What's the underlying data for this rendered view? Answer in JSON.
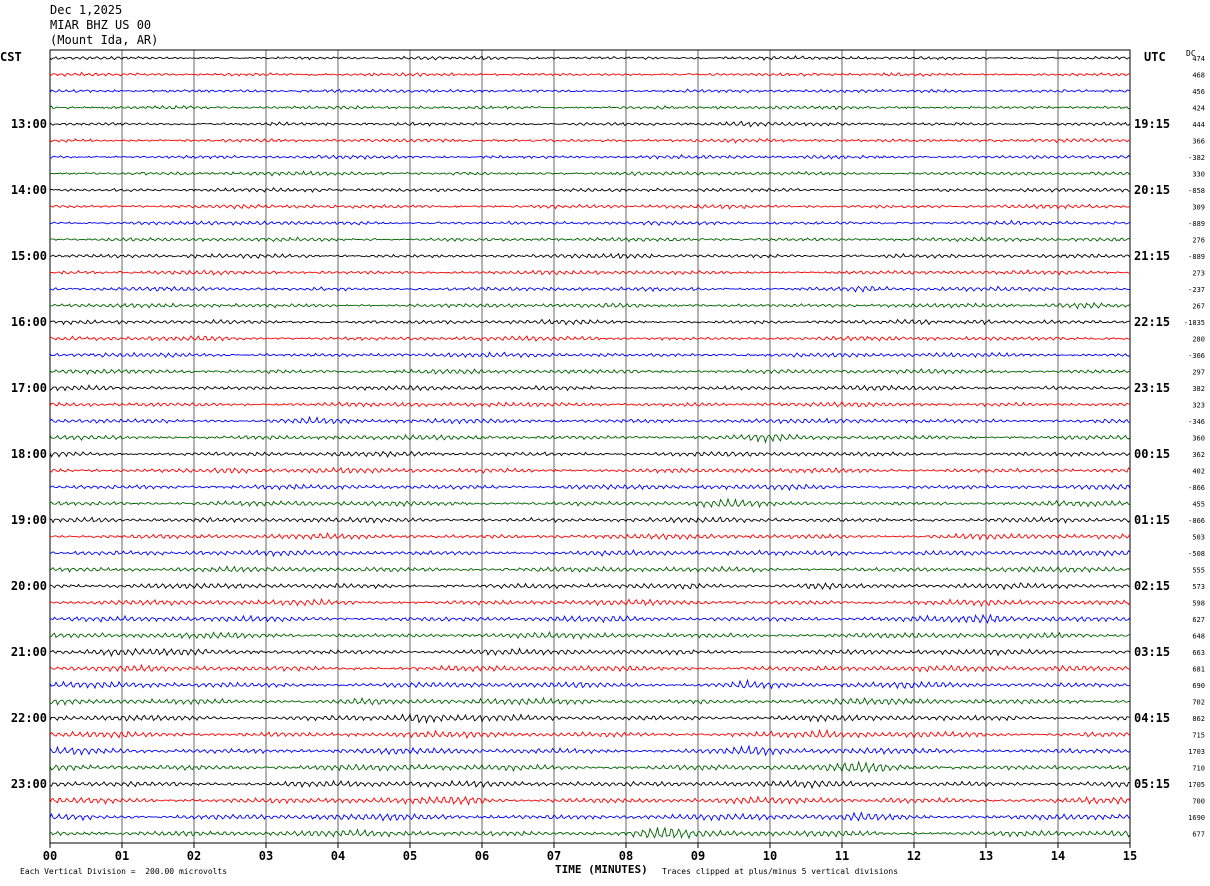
{
  "header": {
    "date": "Dec 1,2025",
    "station": "MIAR BHZ US 00",
    "location": "(Mount Ida, AR)"
  },
  "left_axis_label": "CST",
  "right_axis_label": "UTC",
  "dc_label": "DC",
  "footer": {
    "scale_note": "Each Vertical Division =  200.00 microvolts",
    "clip_note": "Traces clipped at plus/minus 5 vertical divisions",
    "xlabel": "TIME (MINUTES)"
  },
  "chart_data": {
    "type": "line",
    "xlabel": "TIME (MINUTES)",
    "xlim": [
      0,
      15
    ],
    "x_ticks": [
      "00",
      "01",
      "02",
      "03",
      "04",
      "05",
      "06",
      "07",
      "08",
      "09",
      "10",
      "11",
      "12",
      "13",
      "14",
      "15"
    ],
    "left_hour_labels": [
      "13:00",
      "14:00",
      "15:00",
      "16:00",
      "17:00",
      "18:00",
      "19:00",
      "20:00",
      "21:00",
      "22:00",
      "23:00"
    ],
    "right_hour_labels": [
      "19:15",
      "20:15",
      "21:15",
      "22:15",
      "23:15",
      "00:15",
      "01:15",
      "02:15",
      "03:15",
      "04:15",
      "05:15"
    ],
    "trace_colors": [
      "#000000",
      "#ff0000",
      "#0000ff",
      "#006400"
    ],
    "trace_count": 48,
    "traces_per_hour": 4,
    "dc_values": [
      "474",
      "468",
      "456",
      "424",
      "444",
      "366",
      "-382",
      "330",
      "-858",
      "309",
      "-889",
      "276",
      "-889",
      "273",
      "-237",
      "267",
      "-1835",
      "280",
      "-366",
      "297",
      "382",
      "323",
      "-346",
      "360",
      "362",
      "402",
      "-866",
      "455",
      "-866",
      "503",
      "-508",
      "555",
      "573",
      "598",
      "627",
      "648",
      "663",
      "681",
      "690",
      "702",
      "862",
      "715",
      "1703",
      "710",
      "1705",
      "700",
      "1690",
      "677"
    ],
    "grid": true
  }
}
